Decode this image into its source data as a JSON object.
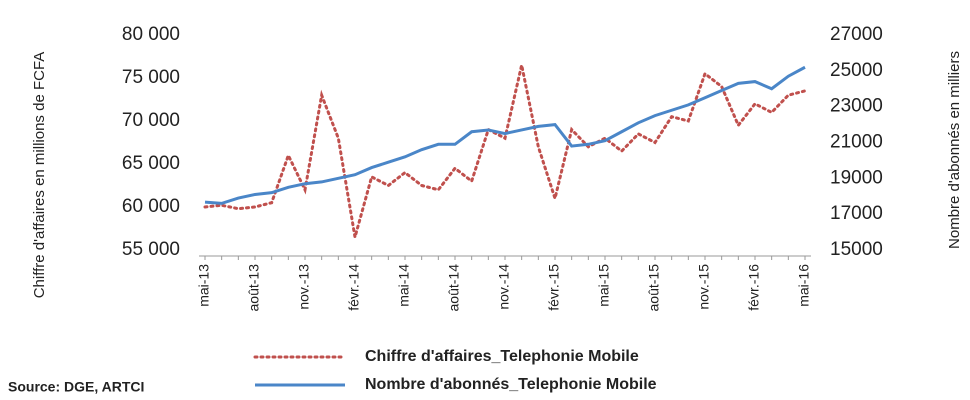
{
  "chart_data": {
    "type": "line",
    "categories": [
      "mai-13",
      null,
      null,
      "août-13",
      null,
      null,
      "nov.-13",
      null,
      null,
      "févr.-14",
      null,
      null,
      "mai-14",
      null,
      null,
      "août-14",
      null,
      null,
      "nov.-14",
      null,
      null,
      "févr.-15",
      null,
      null,
      "mai-15",
      null,
      null,
      "août-15",
      null,
      null,
      "nov.-15",
      null,
      null,
      "févr.-16",
      null,
      null,
      "mai-16"
    ],
    "series": [
      {
        "name": "Chiffre d'affaires_Telephonie Mobile",
        "color": "#c0504d",
        "dashed": true,
        "values": [
          60000,
          60200,
          59800,
          60000,
          60500,
          66000,
          62000,
          73000,
          68000,
          56500,
          63500,
          62500,
          64000,
          62500,
          62000,
          64500,
          63000,
          69000,
          68000,
          76500,
          67000,
          61000,
          69000,
          67000,
          68000,
          66500,
          68500,
          67500,
          70500,
          70000,
          75500,
          74000,
          69500,
          72000,
          71000,
          73000,
          73500
        ]
      },
      {
        "name": "Nombre d'abonnés_Telephonie Mobile",
        "color": "#4a86c8",
        "axis": "y2",
        "values": [
          17670,
          17600,
          17900,
          18100,
          18200,
          18500,
          18700,
          18800,
          19000,
          19200,
          19600,
          19900,
          20200,
          20600,
          20900,
          20900,
          21600,
          21700,
          21500,
          21700,
          21900,
          22000,
          20800,
          20900,
          21100,
          21600,
          22100,
          22500,
          22800,
          23100,
          23500,
          23900,
          24300,
          24400,
          24000,
          24700,
          25200
        ]
      }
    ],
    "ylabel": "Chiffre d'affaires en millions de FCFA",
    "y2label": "Nombre d'abonnés en milliers",
    "ylim": [
      55000,
      80000
    ],
    "yticks": [
      {
        "value": 55000,
        "label": "55 000"
      },
      {
        "value": 60000,
        "label": "60 000"
      },
      {
        "value": 65000,
        "label": "65 000"
      },
      {
        "value": 70000,
        "label": "70 000"
      },
      {
        "value": 75000,
        "label": "75 000"
      },
      {
        "value": 80000,
        "label": "80 000"
      }
    ],
    "y2lim": [
      15000,
      27000
    ],
    "y2ticks": [
      15000,
      17000,
      19000,
      21000,
      23000,
      25000,
      27000
    ],
    "source": "Source: DGE, ARTCI"
  }
}
